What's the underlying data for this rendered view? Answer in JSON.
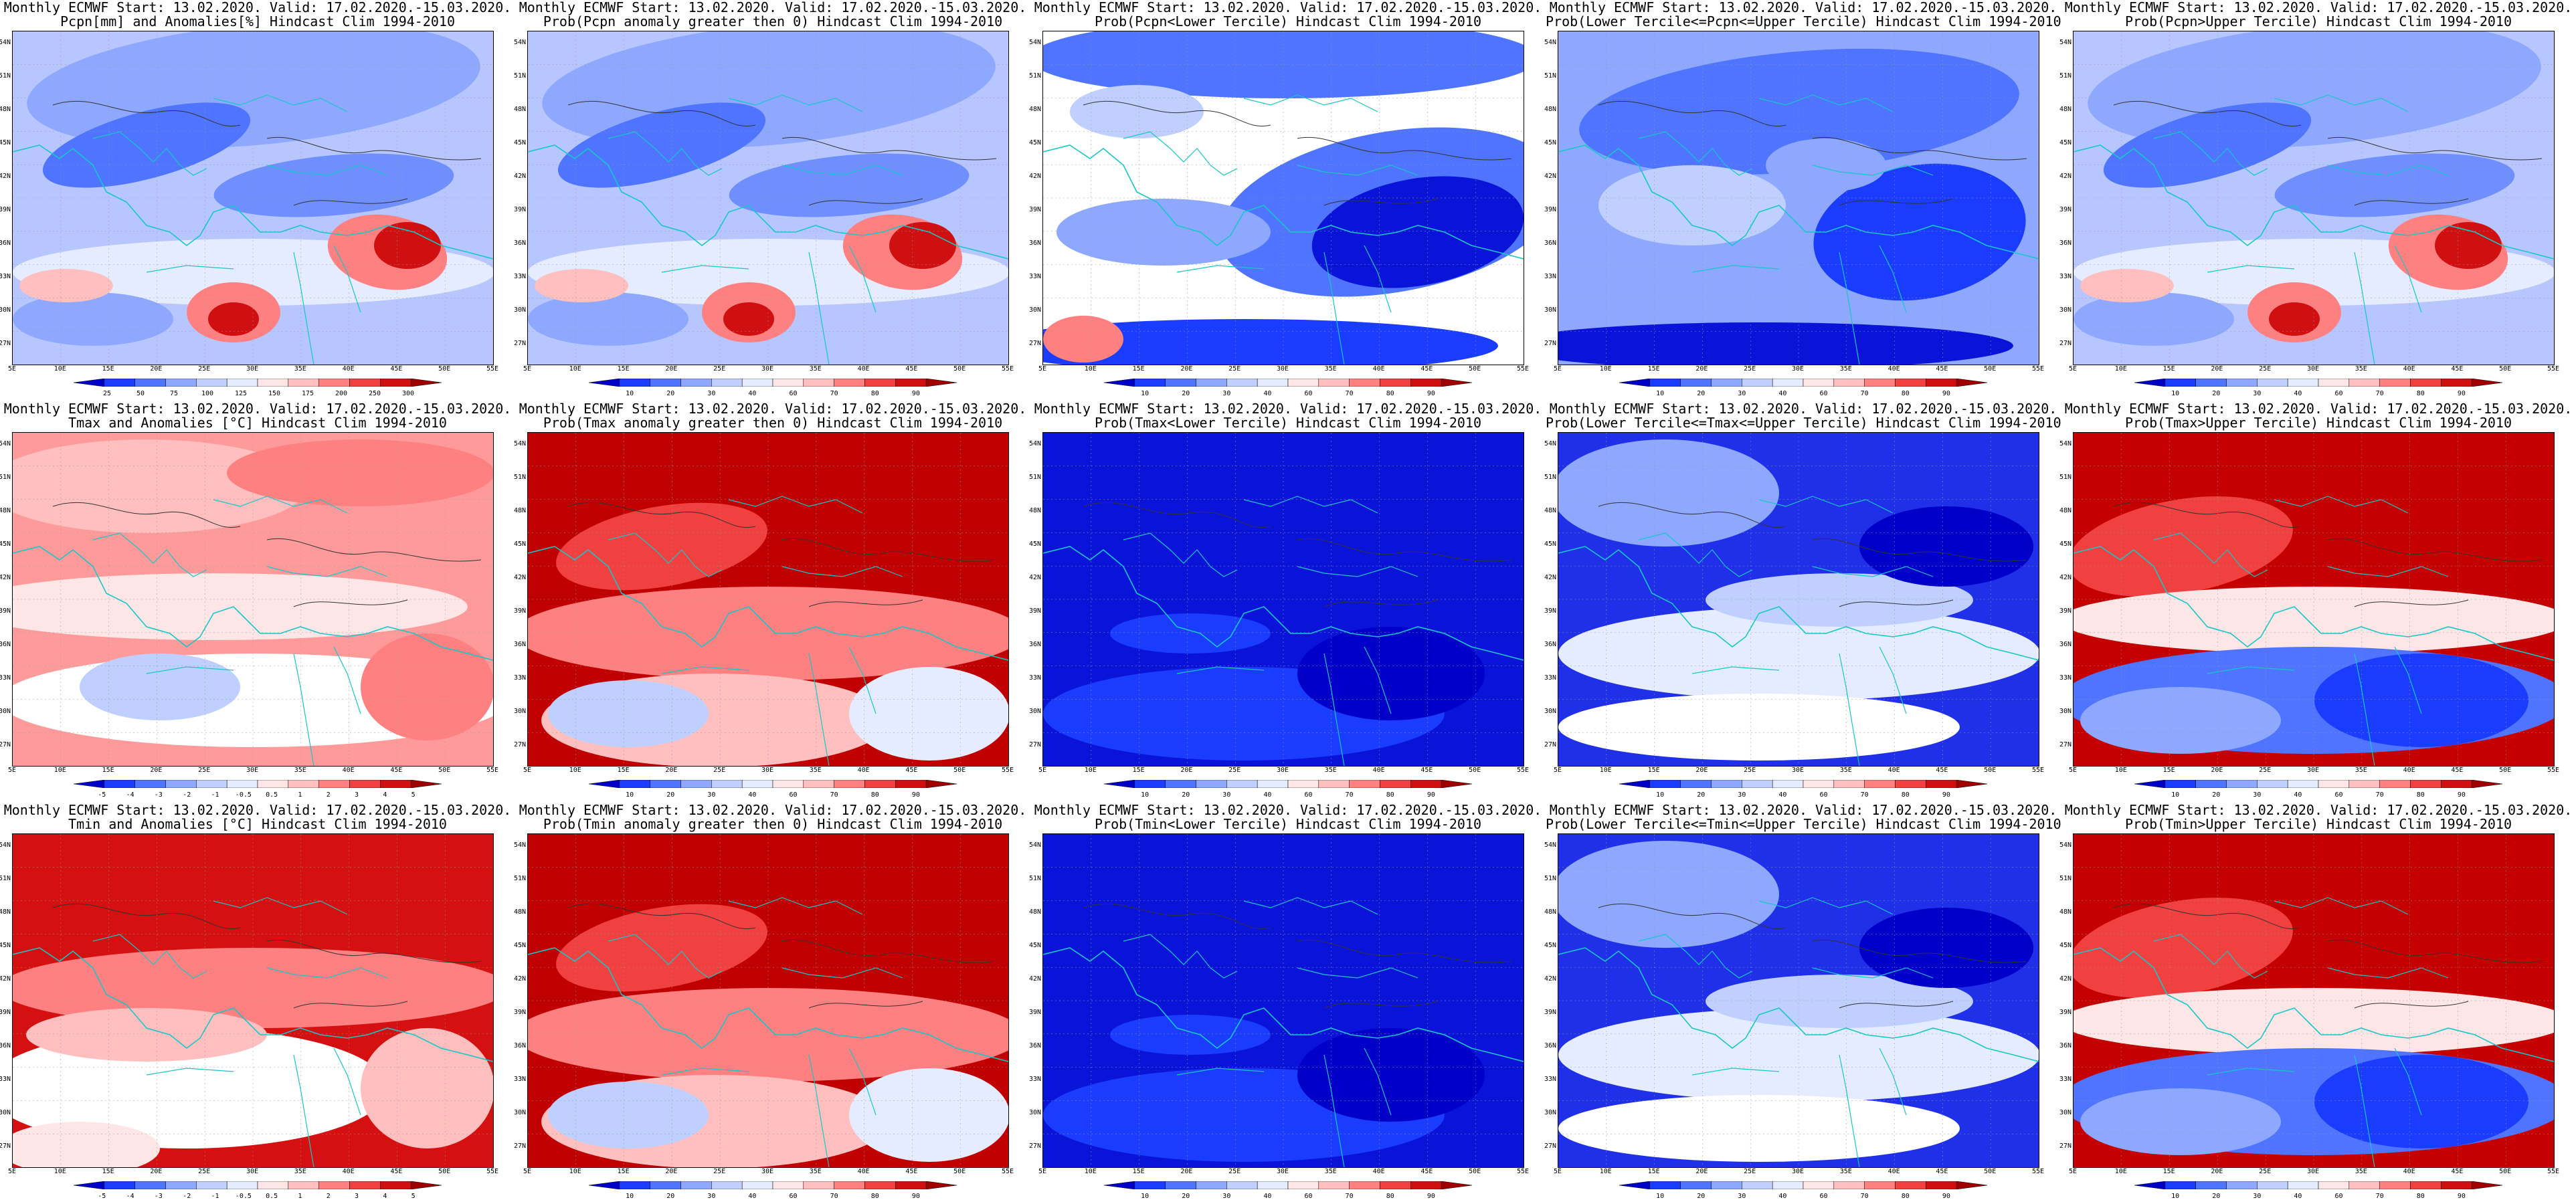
{
  "grid": {
    "rows": 3,
    "cols": 5
  },
  "lat_labels": [
    "54N",
    "51N",
    "48N",
    "45N",
    "42N",
    "39N",
    "36N",
    "33N",
    "30N",
    "27N"
  ],
  "lon_labels": [
    "5E",
    "10E",
    "15E",
    "20E",
    "25E",
    "30E",
    "35E",
    "40E",
    "45E",
    "50E",
    "55E"
  ],
  "anom_pcp_levels": [
    "25",
    "50",
    "75",
    "100",
    "125",
    "150",
    "175",
    "200",
    "250",
    "300"
  ],
  "anom_temp_levels": [
    "-5",
    "-4",
    "-3",
    "-2",
    "-1",
    "-0.5",
    "0.5",
    "1",
    "2",
    "3",
    "4",
    "5"
  ],
  "prob_levels": [
    "10",
    "20",
    "30",
    "40",
    "60",
    "70",
    "80",
    "90"
  ],
  "colorbar_colors": {
    "cool": [
      "#0000c8",
      "#1a3cff",
      "#4f74ff",
      "#8ea8ff",
      "#bfcfff",
      "#e6ecff"
    ],
    "warm": [
      "#ffe6e6",
      "#ffbfbf",
      "#ff8080",
      "#f04040",
      "#d01010",
      "#a00000"
    ]
  },
  "panels": [
    {
      "line1": "Monthly ECMWF Start: 13.02.2020. Valid: 17.02.2020.-15.03.2020.",
      "line2": "Pcpn[mm] and Anomalies[%] Hindcast Clim 1994-2010",
      "pattern": "pcp_anom",
      "cbar": "pcp"
    },
    {
      "line1": "Monthly ECMWF Start: 13.02.2020. Valid: 17.02.2020.-15.03.2020.",
      "line2": "Prob(Pcpn anomaly greater then 0) Hindcast Clim 1994-2010",
      "pattern": "pcp_anom",
      "cbar": "prob"
    },
    {
      "line1": "Monthly ECMWF Start: 13.02.2020. Valid: 17.02.2020.-15.03.2020.",
      "line2": "Prob(Pcpn<Lower Tercile) Hindcast Clim 1994-2010",
      "pattern": "pcp_lower",
      "cbar": "prob"
    },
    {
      "line1": "Monthly ECMWF Start: 13.02.2020. Valid: 17.02.2020.-15.03.2020.",
      "line2": "Prob(Lower Tercile<=Pcpn<=Upper Tercile) Hindcast Clim 1994-2010",
      "pattern": "pcp_mid",
      "cbar": "prob"
    },
    {
      "line1": "Monthly ECMWF Start: 13.02.2020. Valid: 17.02.2020.-15.03.2020.",
      "line2": "Prob(Pcpn>Upper Tercile) Hindcast Clim 1994-2010",
      "pattern": "pcp_anom",
      "cbar": "prob"
    },
    {
      "line1": "Monthly ECMWF Start: 13.02.2020. Valid: 17.02.2020.-15.03.2020.",
      "line2": "Tmax and Anomalies [°C] Hindcast Clim 1994-2010",
      "pattern": "tmax_anom",
      "cbar": "temp"
    },
    {
      "line1": "Monthly ECMWF Start: 13.02.2020. Valid: 17.02.2020.-15.03.2020.",
      "line2": "Prob(Tmax anomaly greater then 0) Hindcast Clim 1994-2010",
      "pattern": "tmax_hot",
      "cbar": "prob"
    },
    {
      "line1": "Monthly ECMWF Start: 13.02.2020. Valid: 17.02.2020.-15.03.2020.",
      "line2": "Prob(Tmax<Lower Tercile) Hindcast Clim 1994-2010",
      "pattern": "cold_low",
      "cbar": "prob"
    },
    {
      "line1": "Monthly ECMWF Start: 13.02.2020. Valid: 17.02.2020.-15.03.2020.",
      "line2": "Prob(Lower Tercile<=Tmax<=Upper Tercile) Hindcast Clim 1994-2010",
      "pattern": "mid_blue",
      "cbar": "prob"
    },
    {
      "line1": "Monthly ECMWF Start: 13.02.2020. Valid: 17.02.2020.-15.03.2020.",
      "line2": "Prob(Tmax>Upper Tercile) Hindcast Clim 1994-2010",
      "pattern": "upper_warm",
      "cbar": "prob"
    },
    {
      "line1": "Monthly ECMWF Start: 13.02.2020. Valid: 17.02.2020.-15.03.2020.",
      "line2": "Tmin and Anomalies [°C] Hindcast Clim 1994-2010",
      "pattern": "tmin_anom",
      "cbar": "temp"
    },
    {
      "line1": "Monthly ECMWF Start: 13.02.2020. Valid: 17.02.2020.-15.03.2020.",
      "line2": "Prob(Tmin anomaly greater then 0) Hindcast Clim 1994-2010",
      "pattern": "tmax_hot",
      "cbar": "prob"
    },
    {
      "line1": "Monthly ECMWF Start: 13.02.2020. Valid: 17.02.2020.-15.03.2020.",
      "line2": "Prob(Tmin<Lower Tercile) Hindcast Clim 1994-2010",
      "pattern": "cold_low",
      "cbar": "prob"
    },
    {
      "line1": "Monthly ECMWF Start: 13.02.2020. Valid: 17.02.2020.-15.03.2020.",
      "line2": "Prob(Lower Tercile<=Tmin<=Upper Tercile) Hindcast Clim 1994-2010",
      "pattern": "mid_blue",
      "cbar": "prob"
    },
    {
      "line1": "Monthly ECMWF Start: 13.02.2020. Valid: 17.02.2020.-15.03.2020.",
      "line2": "Prob(Tmin>Upper Tercile) Hindcast Clim 1994-2010",
      "pattern": "upper_warm",
      "cbar": "prob"
    }
  ]
}
